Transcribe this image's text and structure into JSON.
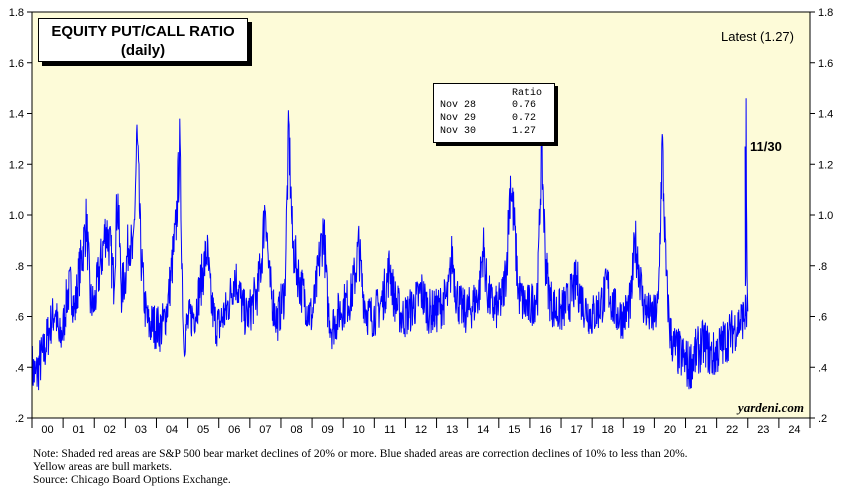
{
  "title": "EQUITY PUT/CALL RATIO",
  "subtitle": "(daily)",
  "latest_label": "Latest (1.27)",
  "callout_label": "11/30",
  "credit": "yardeni.com",
  "table": {
    "header": "Ratio",
    "rows": [
      {
        "date": "Nov 28",
        "value": "0.76"
      },
      {
        "date": "Nov 29",
        "value": "0.72"
      },
      {
        "date": "Nov 30",
        "value": "1.27"
      }
    ]
  },
  "notes": [
    "Note: Shaded red areas are S&P 500 bear market declines of 20% or more.  Blue shaded areas are correction declines of 10% to less than 20%.",
    "Yellow areas are bull markets.",
    "Source: Chicago Board Options Exchange."
  ],
  "colors": {
    "background": "#fdfbd8",
    "line": "#0000ff",
    "axis": "#000000"
  },
  "chart_data": {
    "type": "line",
    "series": [
      {
        "values_by_year": [
          [
            0.4,
            0.36,
            0.42,
            0.45,
            0.52,
            0.58,
            0.63,
            0.5
          ],
          [
            0.55,
            0.68,
            0.72,
            0.62,
            0.76,
            0.85,
            0.98,
            0.66
          ],
          [
            0.64,
            0.75,
            0.84,
            0.95,
            0.88,
            0.74,
            1.08,
            0.7
          ],
          [
            0.76,
            0.92,
            0.82,
            1.31,
            0.85,
            0.64,
            0.56,
            0.57
          ],
          [
            0.56,
            0.55,
            0.58,
            0.66,
            0.8,
            0.94,
            1.26,
            0.52
          ],
          [
            0.57,
            0.6,
            0.62,
            0.7,
            0.78,
            0.86,
            0.66,
            0.58
          ],
          [
            0.56,
            0.6,
            0.62,
            0.68,
            0.76,
            0.72,
            0.64,
            0.6
          ],
          [
            0.62,
            0.66,
            0.7,
            0.82,
            1.06,
            0.74,
            0.65,
            0.58
          ],
          [
            0.64,
            0.7,
            1.34,
            0.88,
            0.8,
            0.72,
            0.68,
            0.62
          ],
          [
            0.6,
            0.7,
            0.84,
            0.95,
            0.64,
            0.56,
            0.58,
            0.62
          ],
          [
            0.64,
            0.66,
            0.68,
            0.76,
            0.88,
            0.7,
            0.62,
            0.6
          ],
          [
            0.61,
            0.63,
            0.66,
            0.72,
            0.8,
            0.68,
            0.64,
            0.6
          ],
          [
            0.6,
            0.62,
            0.64,
            0.66,
            0.7,
            0.66,
            0.62,
            0.62
          ],
          [
            0.62,
            0.64,
            0.66,
            0.68,
            0.84,
            0.7,
            0.64,
            0.62
          ],
          [
            0.62,
            0.64,
            0.66,
            0.7,
            0.88,
            0.7,
            0.65,
            0.63
          ],
          [
            0.64,
            0.68,
            0.8,
            1.14,
            0.96,
            0.7,
            0.66,
            0.64
          ],
          [
            0.64,
            0.66,
            0.7,
            1.27,
            0.82,
            0.68,
            0.64,
            0.62
          ],
          [
            0.62,
            0.64,
            0.66,
            0.7,
            0.74,
            0.68,
            0.64,
            0.62
          ],
          [
            0.6,
            0.62,
            0.64,
            0.68,
            0.72,
            0.66,
            0.62,
            0.6
          ],
          [
            0.6,
            0.62,
            0.66,
            0.9,
            0.8,
            0.66,
            0.62,
            0.6
          ],
          [
            0.6,
            0.64,
            1.28,
            0.76,
            0.54,
            0.48,
            0.46,
            0.44
          ],
          [
            0.42,
            0.4,
            0.44,
            0.46,
            0.48,
            0.5,
            0.46,
            0.44
          ],
          [
            0.46,
            0.48,
            0.5,
            0.52,
            0.54,
            0.56,
            0.58,
            0.6
          ]
        ],
        "tail_values": [
          0.62,
          0.68,
          0.76,
          0.9,
          1.1,
          1.46,
          0.76,
          0.72,
          1.27
        ]
      }
    ],
    "x_ticks": [
      "00",
      "01",
      "02",
      "03",
      "04",
      "05",
      "06",
      "07",
      "08",
      "09",
      "10",
      "11",
      "12",
      "13",
      "14",
      "15",
      "16",
      "17",
      "18",
      "19",
      "20",
      "21",
      "22",
      "23",
      "24"
    ],
    "y_ticks": [
      ".2",
      ".4",
      ".6",
      ".8",
      "1.0",
      "1.2",
      "1.4",
      "1.6",
      "1.8"
    ],
    "y_tick_values": [
      0.2,
      0.4,
      0.6,
      0.8,
      1.0,
      1.2,
      1.4,
      1.6,
      1.8
    ],
    "ylim": [
      0.2,
      1.8
    ],
    "xlim": [
      2000,
      2025
    ],
    "last_date": 2022.915,
    "grid": false
  }
}
